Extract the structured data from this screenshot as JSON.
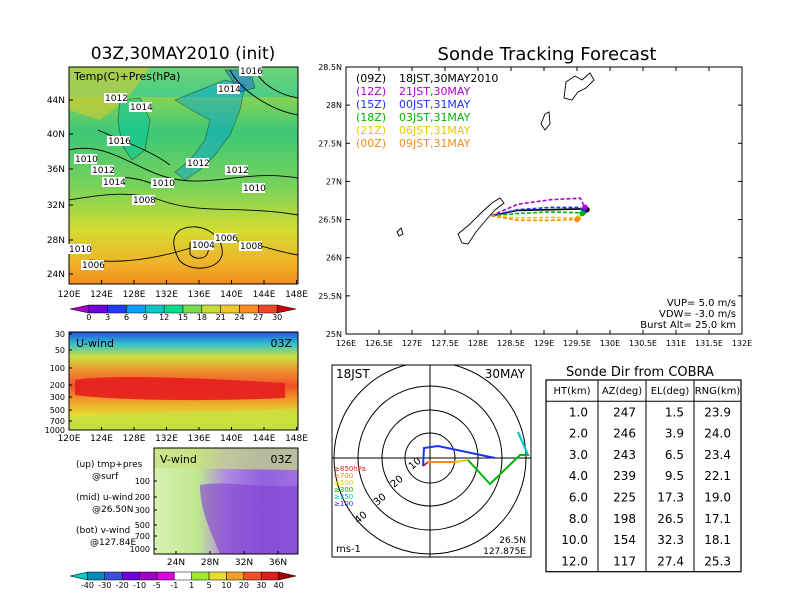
{
  "left_panel": {
    "title": "03Z,30MAY2010 (init)",
    "map_label": "Temp(C)+Pres(hPa)",
    "lat_ticks": [
      "44N",
      "40N",
      "36N",
      "32N",
      "28N",
      "24N"
    ],
    "lon_ticks": [
      "120E",
      "124E",
      "128E",
      "132E",
      "136E",
      "140E",
      "144E",
      "148E"
    ],
    "pressure_labels": [
      "1016",
      "1014",
      "1012",
      "1014",
      "1016",
      "1010",
      "1012",
      "1014",
      "1012",
      "1010",
      "1008",
      "1010",
      "1012",
      "1004",
      "1006",
      "1008",
      "1010",
      "1006"
    ],
    "temp_colorbar": [
      "0",
      "3",
      "6",
      "9",
      "12",
      "15",
      "18",
      "21",
      "24",
      "27",
      "30"
    ],
    "temp_colors": [
      "#a000c8",
      "#6e00dc",
      "#1e3cff",
      "#00a0ff",
      "#00c8c8",
      "#00dc8c",
      "#78dc50",
      "#c8dc32",
      "#f0c828",
      "#ff8c1e",
      "#f04628",
      "#c80000"
    ],
    "u_wind": {
      "label": "U-wind",
      "time": "03Z",
      "p_ticks": [
        "30",
        "50",
        "100",
        "200",
        "300",
        "500",
        "700",
        "1000"
      ],
      "lon_ticks": [
        "120E",
        "124E",
        "128E",
        "132E",
        "136E",
        "140E",
        "144E",
        "148E"
      ]
    },
    "v_wind": {
      "label": "V-wind",
      "time": "03Z",
      "p_ticks": [
        "100",
        "200",
        "300",
        "500",
        "700",
        "1000"
      ],
      "lat_ticks": [
        "24N",
        "28N",
        "32N",
        "36N"
      ]
    },
    "notes": [
      "(up) tmp+pres",
      "@surf",
      "(mid) u-wind",
      "@26.50N",
      "(bot) v-wind",
      "@127.84E"
    ],
    "wind_colorbar": [
      "-40",
      "-30",
      "-20",
      "-10",
      "-5",
      "-1",
      "1",
      "5",
      "10",
      "20",
      "30",
      "40"
    ],
    "wind_colors": [
      "#00c8c8",
      "#008cb4",
      "#3c50dc",
      "#6e00dc",
      "#a000c8",
      "#dc00dc",
      "#ffffff",
      "#a0e632",
      "#e6dc32",
      "#f0a028",
      "#f05028",
      "#dc1e1e",
      "#a00000"
    ]
  },
  "forecast": {
    "title": "Sonde Tracking Forecast",
    "lat_ticks": [
      "28.5N",
      "28N",
      "27.5N",
      "27N",
      "26.5N",
      "26N",
      "25.5N",
      "25N"
    ],
    "lon_ticks": [
      "126E",
      "126.5E",
      "127E",
      "127.5E",
      "128E",
      "128.5E",
      "129E",
      "129.5E",
      "130E",
      "130.5E",
      "131E",
      "131.5E",
      "132E"
    ],
    "legend": [
      {
        "code": "(09Z)",
        "label": "18JST,30MAY2010",
        "color": "#000000"
      },
      {
        "code": "(12Z)",
        "label": "21JST,30MAY",
        "color": "#b400dc"
      },
      {
        "code": "(15Z)",
        "label": "00JST,31MAY",
        "color": "#1e32ff"
      },
      {
        "code": "(18Z)",
        "label": "03JST,31MAY",
        "color": "#00b400"
      },
      {
        "code": "(21Z)",
        "label": "06JST,31MAY",
        "color": "#e6c800"
      },
      {
        "code": "(00Z)",
        "label": "09JST,31MAY",
        "color": "#f08c1e"
      }
    ],
    "params": [
      "VUP=  5.0 m/s",
      "VDW= -3.0 m/s",
      "Burst Alt= 25.0 km"
    ]
  },
  "chart_data": {
    "type": "line",
    "title": "Sonde Tracking Forecast",
    "xlim": [
      126,
      132
    ],
    "ylim": [
      25,
      28.5
    ],
    "series": [
      {
        "name": "(09Z) 18JST,30MAY2010",
        "x": [
          128.2,
          128.6,
          129.1,
          129.55,
          129.65
        ],
        "y": [
          26.55,
          26.62,
          26.63,
          26.64,
          26.63
        ]
      },
      {
        "name": "(12Z) 21JST,30MAY",
        "x": [
          128.2,
          128.6,
          129.1,
          129.55,
          129.62
        ],
        "y": [
          26.55,
          26.7,
          26.76,
          26.78,
          26.66
        ]
      },
      {
        "name": "(15Z) 00JST,31MAY",
        "x": [
          128.2,
          128.6,
          129.1,
          129.55,
          129.6
        ],
        "y": [
          26.55,
          26.63,
          26.66,
          26.66,
          26.6
        ]
      },
      {
        "name": "(18Z) 03JST,31MAY",
        "x": [
          128.2,
          128.6,
          129.1,
          129.5,
          129.58
        ],
        "y": [
          26.55,
          26.58,
          26.6,
          26.59,
          26.58
        ]
      },
      {
        "name": "(21Z) 06JST,31MAY",
        "x": [
          128.2,
          128.6,
          129.1,
          129.45,
          129.52
        ],
        "y": [
          26.55,
          26.52,
          26.53,
          26.52,
          26.52
        ]
      },
      {
        "name": "(00Z) 09JST,31MAY",
        "x": [
          128.2,
          128.6,
          129.1,
          129.42,
          129.5
        ],
        "y": [
          26.55,
          26.49,
          26.49,
          26.5,
          26.5
        ]
      }
    ]
  },
  "polar": {
    "time": "18JST",
    "date": "30MAY",
    "range_labels": [
      "10",
      "20",
      "30",
      "40"
    ],
    "unit": "ms-1",
    "location": [
      "26.5N",
      "127.875E"
    ],
    "levels": [
      {
        "label": "≥850hPa",
        "color": "#dc1e1e"
      },
      {
        "label": "≥700",
        "color": "#f08c1e"
      },
      {
        "label": "≥500",
        "color": "#e6c800"
      },
      {
        "label": "≥300",
        "color": "#00b400"
      },
      {
        "label": "≥250",
        "color": "#00c8dc"
      },
      {
        "label": "≥100",
        "color": "#1e32ff"
      }
    ]
  },
  "sonde_table": {
    "title": "Sonde Dir from COBRA",
    "headers": [
      "HT(km)",
      "AZ(deg)",
      "EL(deg)",
      "RNG(km)"
    ],
    "rows": [
      [
        "1.0",
        "247",
        "1.5",
        "23.9"
      ],
      [
        "2.0",
        "246",
        "3.9",
        "24.0"
      ],
      [
        "3.0",
        "243",
        "6.5",
        "23.4"
      ],
      [
        "4.0",
        "239",
        "9.5",
        "22.1"
      ],
      [
        "6.0",
        "225",
        "17.3",
        "19.0"
      ],
      [
        "8.0",
        "198",
        "26.5",
        "17.1"
      ],
      [
        "10.0",
        "154",
        "32.3",
        "18.1"
      ],
      [
        "12.0",
        "117",
        "27.4",
        "25.3"
      ]
    ]
  }
}
